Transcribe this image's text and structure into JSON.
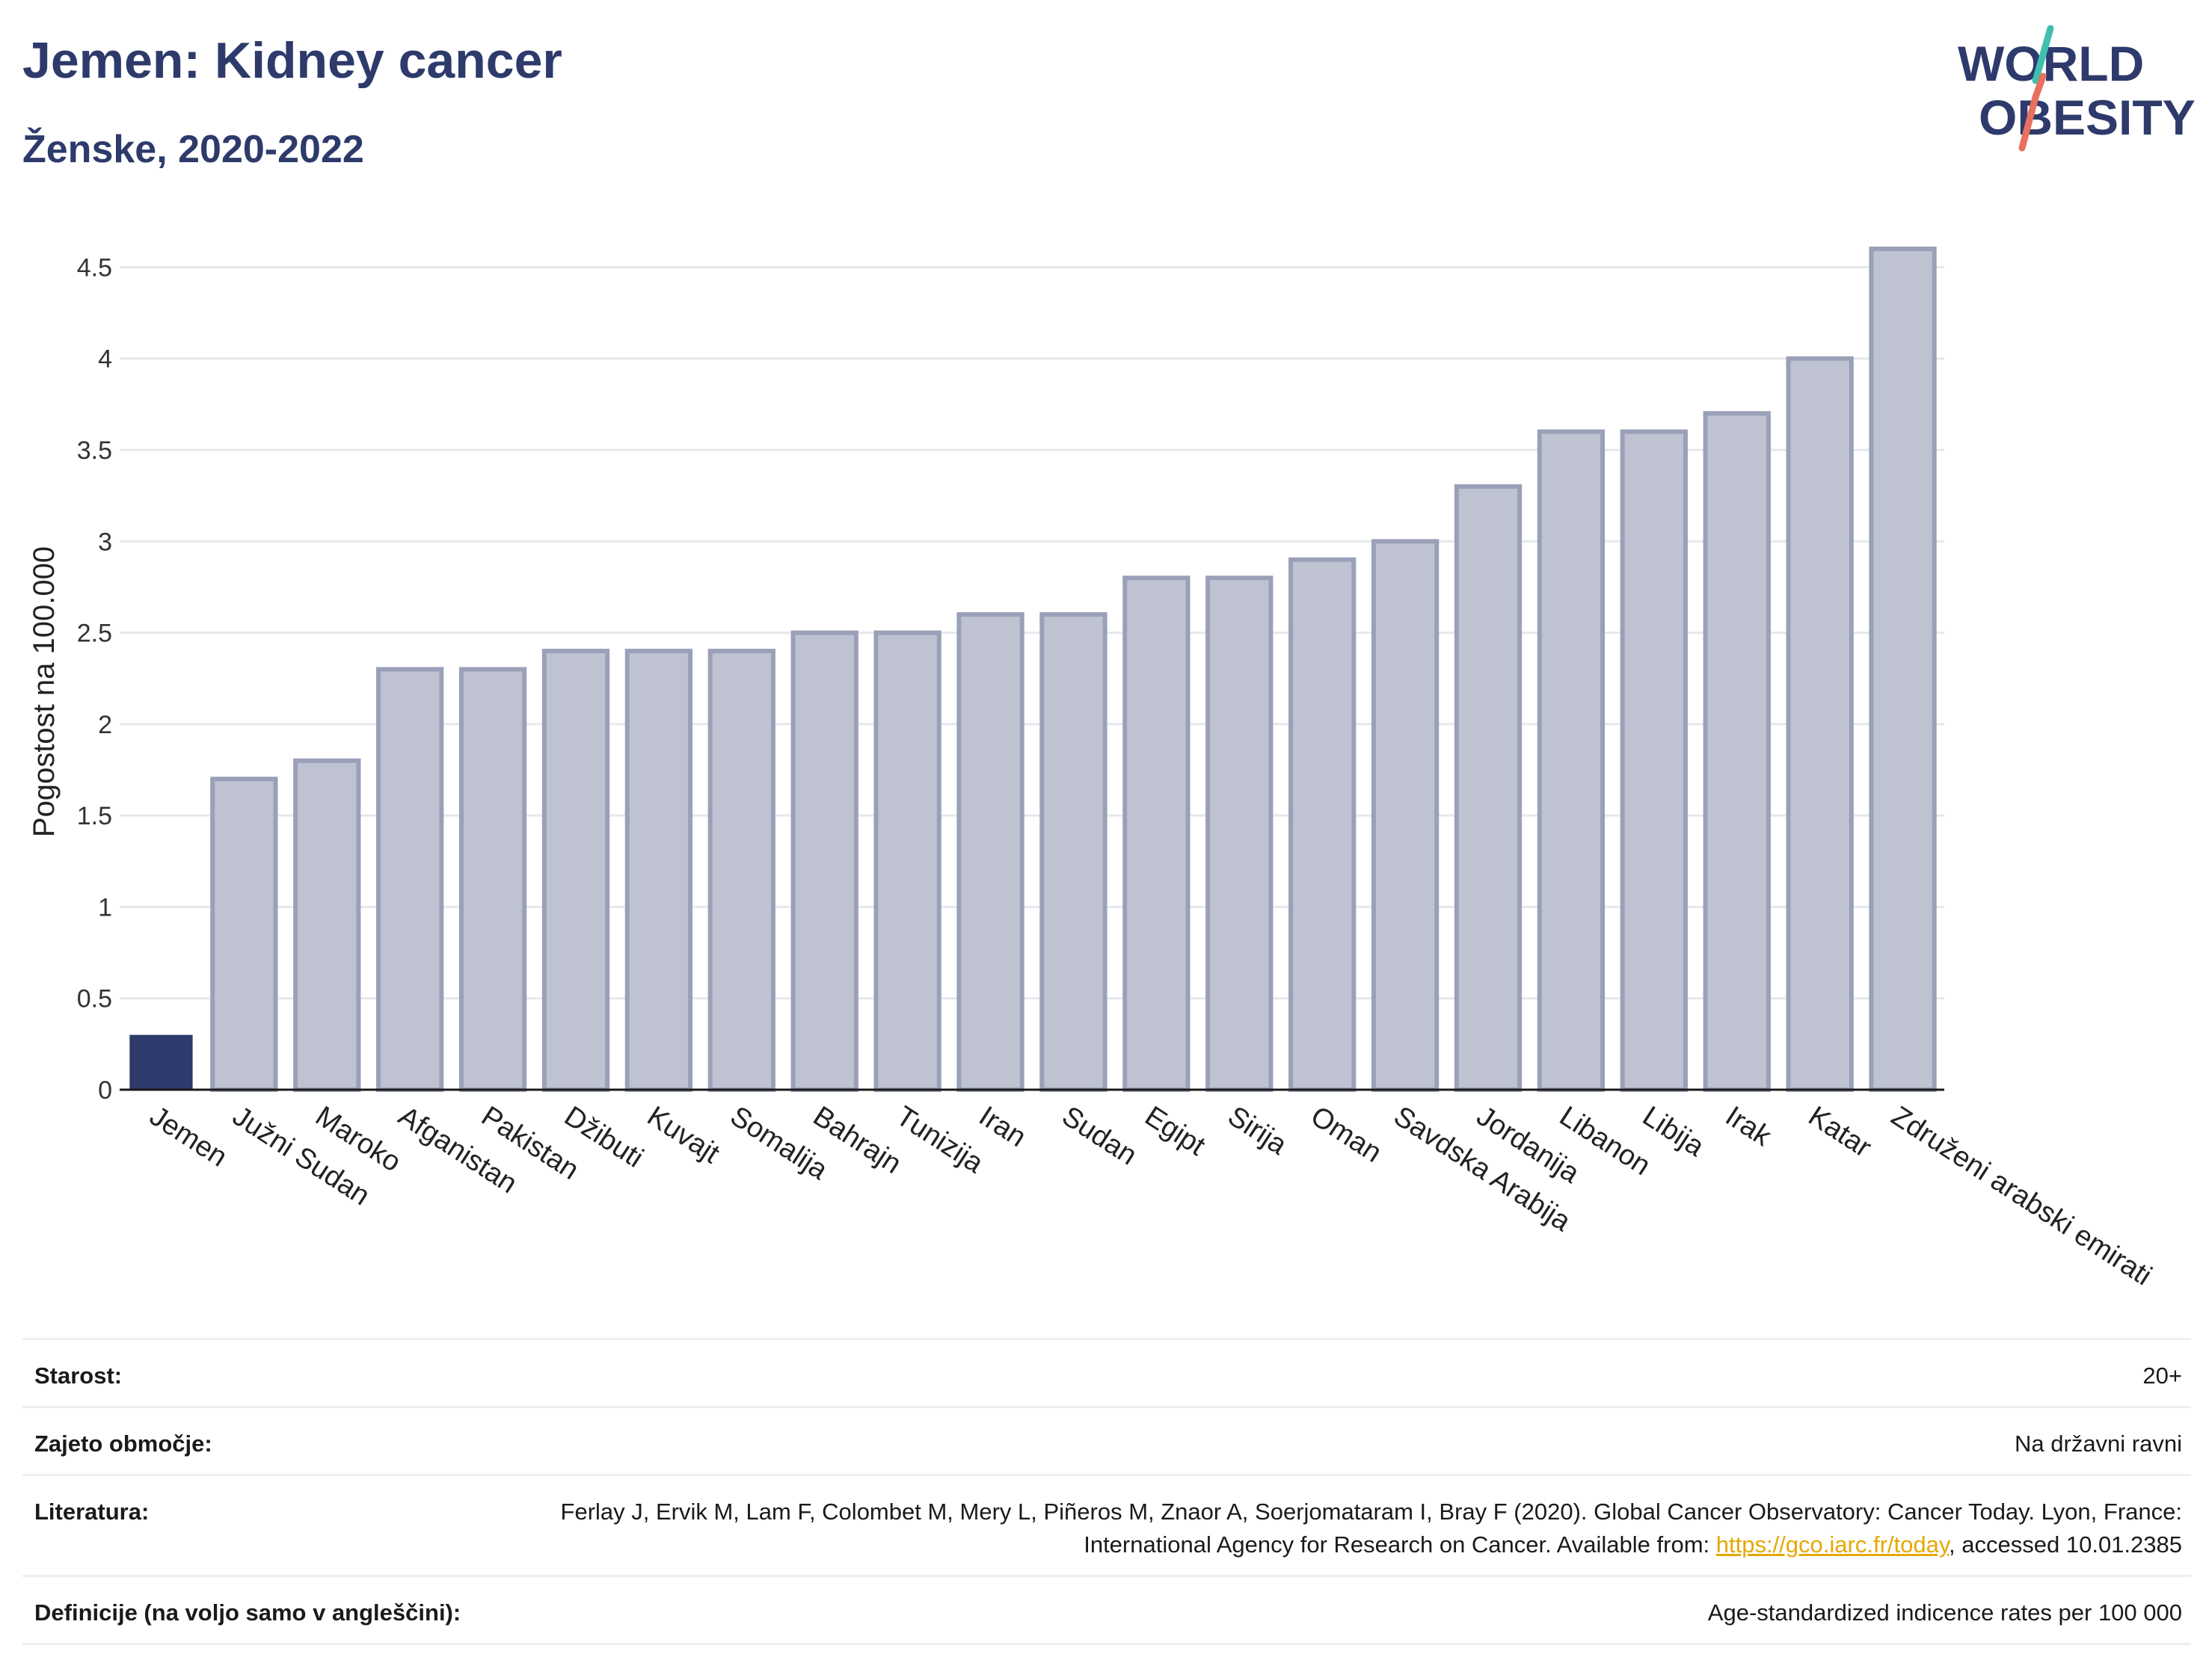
{
  "header": {
    "title": "Jemen: Kidney cancer",
    "subtitle": "Ženske, 2020-2022"
  },
  "logo": {
    "line1": "WORLD",
    "line2": "OBESITY",
    "name": "world-obesity-logo"
  },
  "colors": {
    "highlight_bar": "#2d3a6b",
    "other_bar_fill": "#bfc3d1",
    "other_bar_stroke": "#9aa0b8",
    "title": "#2d3a6b",
    "link": "#e6a700"
  },
  "chart_data": {
    "type": "bar",
    "title": "Jemen: Kidney cancer",
    "subtitle": "Ženske, 2020-2022",
    "ylabel": "Pogostost na 100.000",
    "xlabel": "",
    "ylim": [
      0,
      4.6
    ],
    "yticks": [
      0,
      0.5,
      1,
      1.5,
      2,
      2.5,
      3,
      3.5,
      4,
      4.5
    ],
    "ytick_labels": [
      "0",
      "0.5",
      "1",
      "1.5",
      "2",
      "2.5",
      "3",
      "3.5",
      "4",
      "4.5"
    ],
    "grid": true,
    "highlight": "Jemen",
    "categories": [
      "Jemen",
      "Južni Sudan",
      "Maroko",
      "Afganistan",
      "Pakistan",
      "Džibuti",
      "Kuvajt",
      "Somalija",
      "Bahrajn",
      "Tunizija",
      "Iran",
      "Sudan",
      "Egipt",
      "Sirija",
      "Oman",
      "Savdska Arabija",
      "Jordanija",
      "Libanon",
      "Libija",
      "Irak",
      "Katar",
      "Združeni arabski emirati"
    ],
    "values": [
      0.3,
      1.7,
      1.8,
      2.3,
      2.3,
      2.4,
      2.4,
      2.4,
      2.5,
      2.5,
      2.6,
      2.6,
      2.8,
      2.8,
      2.9,
      3.0,
      3.3,
      3.6,
      3.6,
      3.7,
      4.0,
      4.6
    ]
  },
  "meta": {
    "rows": [
      {
        "label": "Starost:",
        "value": "20+"
      },
      {
        "label": "Zajeto območje:",
        "value": "Na državni ravni"
      },
      {
        "label": "Definicije (na voljo samo v angleščini):",
        "value": "Age-standardized indicence rates per 100 000"
      }
    ],
    "reference": {
      "label": "Literatura:",
      "text_before": "Ferlay J, Ervik M, Lam F, Colombet M, Mery L, Piñeros M, Znaor A, Soerjomataram I, Bray F (2020). Global Cancer Observatory: Cancer Today. Lyon, France: International Agency for Research on Cancer. Available from: ",
      "link": "https://gco.iarc.fr/today",
      "text_after": ", accessed 10.01.2385"
    }
  }
}
